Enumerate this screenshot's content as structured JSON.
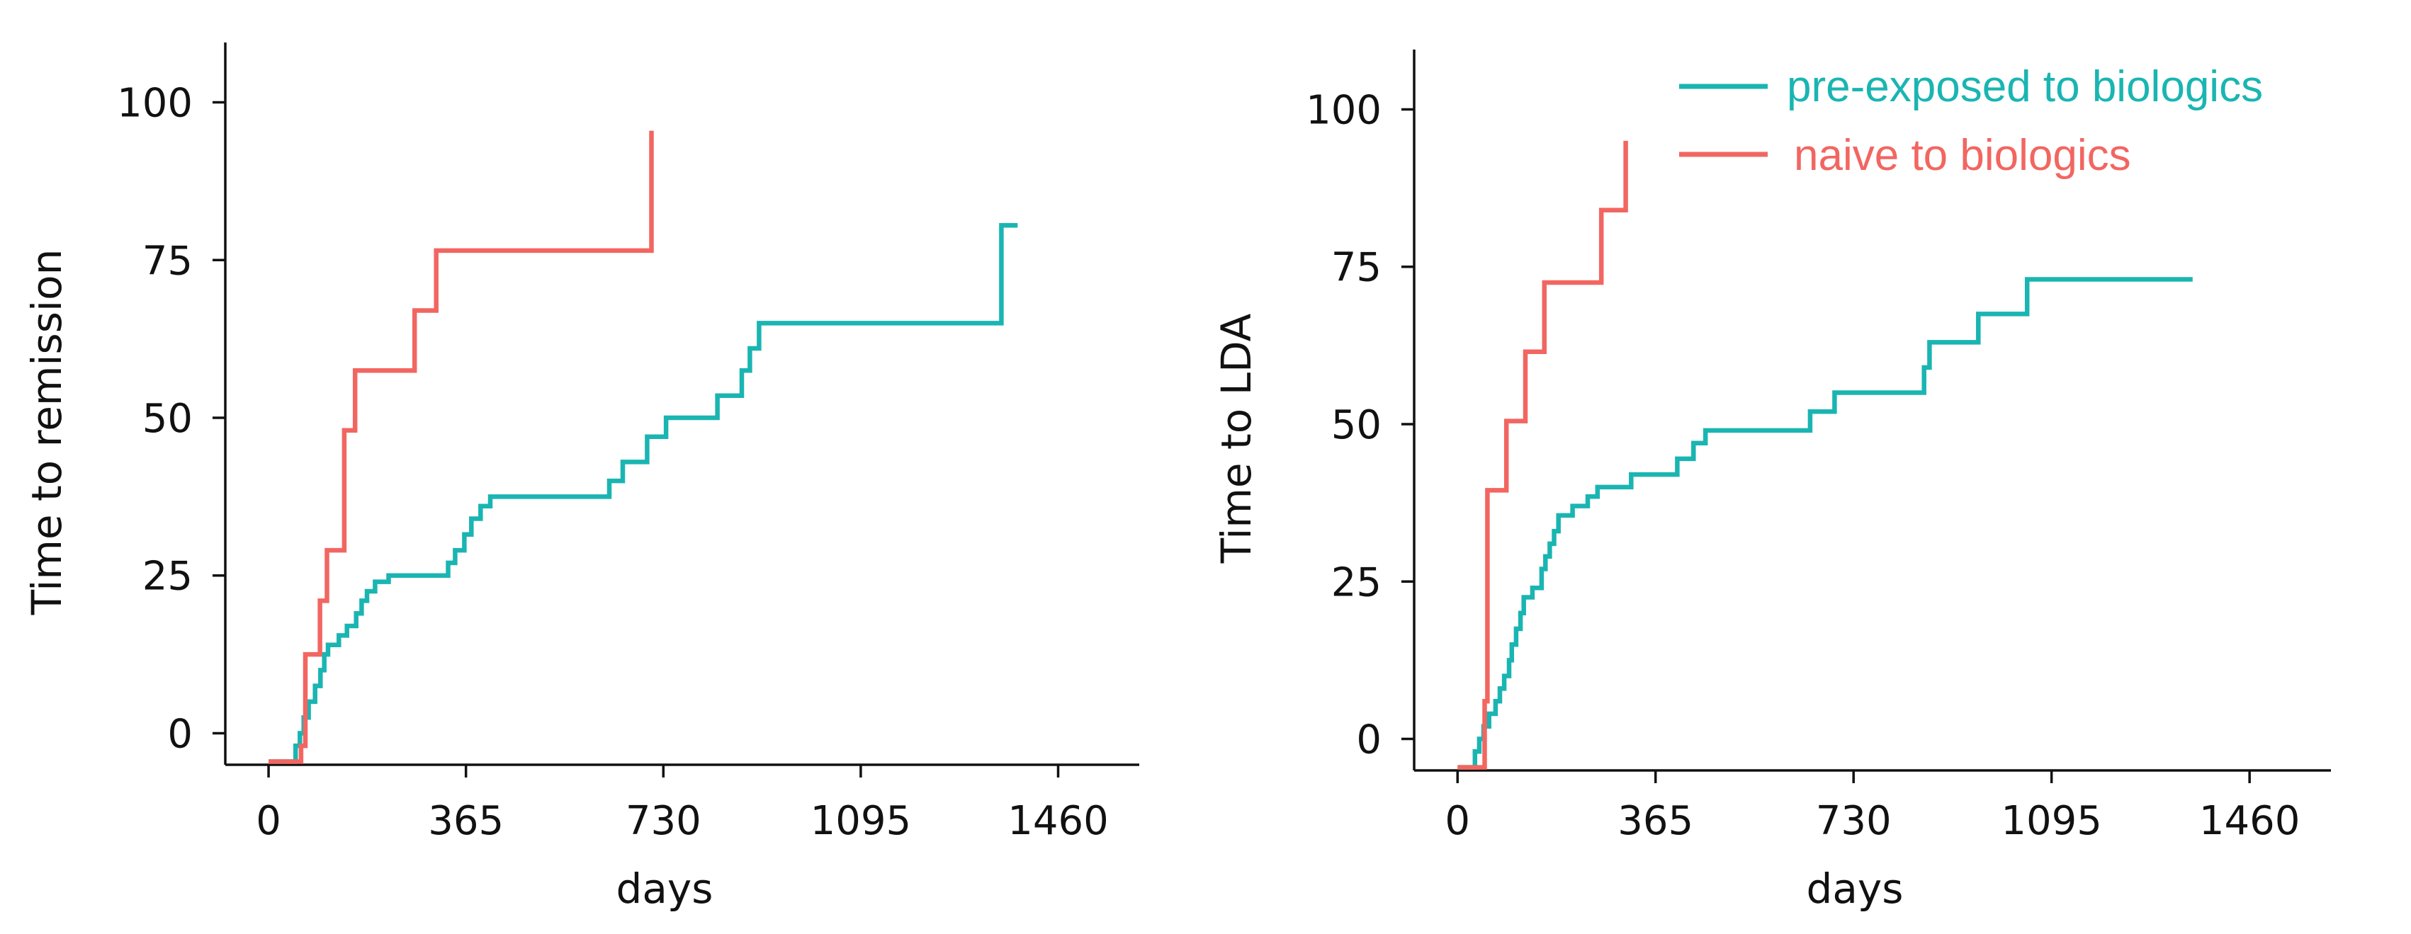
{
  "colors": {
    "pre_exposed": "#1AB5B2",
    "naive": "#F26661",
    "axis": "#111111"
  },
  "legend": {
    "placement": "top-right of right panel",
    "entries": [
      {
        "label": "pre-exposed to biologics",
        "color": "#1AB5B2"
      },
      {
        "label": "naive to biologics",
        "color": "#F26661"
      }
    ]
  },
  "chart_data": [
    {
      "type": "line",
      "step": true,
      "ylabel": "Time to remission",
      "xlabel": "days",
      "xlim": [
        -80,
        1610
      ],
      "ylim": [
        -5,
        105
      ],
      "xticks": [
        0,
        365,
        730,
        1095,
        1460
      ],
      "yticks": [
        0,
        25,
        50,
        75,
        100
      ],
      "grid": false,
      "series": [
        {
          "name": "pre-exposed to biologics",
          "color": "#1AB5B2",
          "points": [
            [
              0,
              -4.5
            ],
            [
              50,
              -4.5
            ],
            [
              50,
              -2
            ],
            [
              58,
              -2
            ],
            [
              58,
              0
            ],
            [
              65,
              0
            ],
            [
              65,
              2.5
            ],
            [
              74,
              2.5
            ],
            [
              74,
              5
            ],
            [
              86,
              5
            ],
            [
              86,
              7.5
            ],
            [
              96,
              7.5
            ],
            [
              96,
              10
            ],
            [
              103,
              10
            ],
            [
              103,
              12.5
            ],
            [
              110,
              12.5
            ],
            [
              110,
              14
            ],
            [
              130,
              14
            ],
            [
              130,
              15.5
            ],
            [
              145,
              15.5
            ],
            [
              145,
              17
            ],
            [
              162,
              17
            ],
            [
              162,
              19
            ],
            [
              172,
              19
            ],
            [
              172,
              21
            ],
            [
              182,
              21
            ],
            [
              182,
              22.5
            ],
            [
              197,
              22.5
            ],
            [
              197,
              24
            ],
            [
              222,
              24
            ],
            [
              222,
              25
            ],
            [
              332,
              25
            ],
            [
              332,
              27
            ],
            [
              345,
              27
            ],
            [
              345,
              29
            ],
            [
              362,
              29
            ],
            [
              362,
              31.5
            ],
            [
              375,
              31.5
            ],
            [
              375,
              34
            ],
            [
              392,
              34
            ],
            [
              392,
              36
            ],
            [
              410,
              36
            ],
            [
              410,
              37.5
            ],
            [
              630,
              37.5
            ],
            [
              630,
              40
            ],
            [
              655,
              40
            ],
            [
              655,
              43
            ],
            [
              700,
              43
            ],
            [
              700,
              47
            ],
            [
              735,
              47
            ],
            [
              735,
              50
            ],
            [
              830,
              50
            ],
            [
              830,
              53.5
            ],
            [
              875,
              53.5
            ],
            [
              875,
              57.5
            ],
            [
              890,
              57.5
            ],
            [
              890,
              61
            ],
            [
              907,
              61
            ],
            [
              907,
              65
            ],
            [
              1355,
              65
            ],
            [
              1355,
              80.5
            ],
            [
              1385,
              80.5
            ]
          ]
        },
        {
          "name": "naive to biologics",
          "color": "#F26661",
          "points": [
            [
              0,
              -4.5
            ],
            [
              60,
              -4.5
            ],
            [
              60,
              -2
            ],
            [
              68,
              -2
            ],
            [
              68,
              12.5
            ],
            [
              95,
              12.5
            ],
            [
              95,
              21
            ],
            [
              108,
              21
            ],
            [
              108,
              29
            ],
            [
              140,
              29
            ],
            [
              140,
              48
            ],
            [
              160,
              48
            ],
            [
              160,
              57.5
            ],
            [
              270,
              57.5
            ],
            [
              270,
              67
            ],
            [
              310,
              67
            ],
            [
              310,
              76.5
            ],
            [
              708,
              76.5
            ],
            [
              708,
              95.5
            ]
          ]
        }
      ]
    },
    {
      "type": "line",
      "step": true,
      "ylabel": "Time to LDA",
      "xlabel": "days",
      "xlim": [
        -80,
        1610
      ],
      "ylim": [
        -5,
        105
      ],
      "xticks": [
        0,
        365,
        730,
        1095,
        1460
      ],
      "yticks": [
        0,
        25,
        50,
        75,
        100
      ],
      "grid": false,
      "series": [
        {
          "name": "pre-exposed to biologics",
          "color": "#1AB5B2",
          "points": [
            [
              0,
              -4.5
            ],
            [
              32,
              -4.5
            ],
            [
              32,
              -2
            ],
            [
              40,
              -2
            ],
            [
              40,
              0
            ],
            [
              48,
              0
            ],
            [
              48,
              2
            ],
            [
              58,
              2
            ],
            [
              58,
              4
            ],
            [
              70,
              4
            ],
            [
              70,
              6
            ],
            [
              78,
              6
            ],
            [
              78,
              8
            ],
            [
              86,
              8
            ],
            [
              86,
              10
            ],
            [
              95,
              10
            ],
            [
              95,
              12.5
            ],
            [
              100,
              12.5
            ],
            [
              100,
              15
            ],
            [
              108,
              15
            ],
            [
              108,
              17.5
            ],
            [
              116,
              17.5
            ],
            [
              116,
              20
            ],
            [
              122,
              20
            ],
            [
              122,
              22.5
            ],
            [
              138,
              22.5
            ],
            [
              138,
              24
            ],
            [
              155,
              24
            ],
            [
              155,
              27
            ],
            [
              162,
              27
            ],
            [
              162,
              29
            ],
            [
              170,
              29
            ],
            [
              170,
              31
            ],
            [
              178,
              31
            ],
            [
              178,
              33
            ],
            [
              186,
              33
            ],
            [
              186,
              35.5
            ],
            [
              212,
              35.5
            ],
            [
              212,
              37
            ],
            [
              240,
              37
            ],
            [
              240,
              38.5
            ],
            [
              258,
              38.5
            ],
            [
              258,
              40
            ],
            [
              320,
              40
            ],
            [
              320,
              42
            ],
            [
              405,
              42
            ],
            [
              405,
              44.5
            ],
            [
              435,
              44.5
            ],
            [
              435,
              47
            ],
            [
              457,
              47
            ],
            [
              457,
              49
            ],
            [
              650,
              49
            ],
            [
              650,
              52
            ],
            [
              695,
              52
            ],
            [
              695,
              55
            ],
            [
              860,
              55
            ],
            [
              860,
              59
            ],
            [
              870,
              59
            ],
            [
              870,
              63
            ],
            [
              960,
              63
            ],
            [
              960,
              67.5
            ],
            [
              1050,
              67.5
            ],
            [
              1050,
              73
            ],
            [
              1355,
              73
            ]
          ]
        },
        {
          "name": "naive to biologics",
          "color": "#F26661",
          "points": [
            [
              0,
              -4.5
            ],
            [
              50,
              -4.5
            ],
            [
              50,
              6
            ],
            [
              55,
              6
            ],
            [
              55,
              39.5
            ],
            [
              90,
              39.5
            ],
            [
              90,
              50.5
            ],
            [
              125,
              50.5
            ],
            [
              125,
              61.5
            ],
            [
              160,
              61.5
            ],
            [
              160,
              72.5
            ],
            [
              265,
              72.5
            ],
            [
              265,
              84
            ],
            [
              310,
              84
            ],
            [
              310,
              95
            ]
          ]
        }
      ]
    }
  ]
}
